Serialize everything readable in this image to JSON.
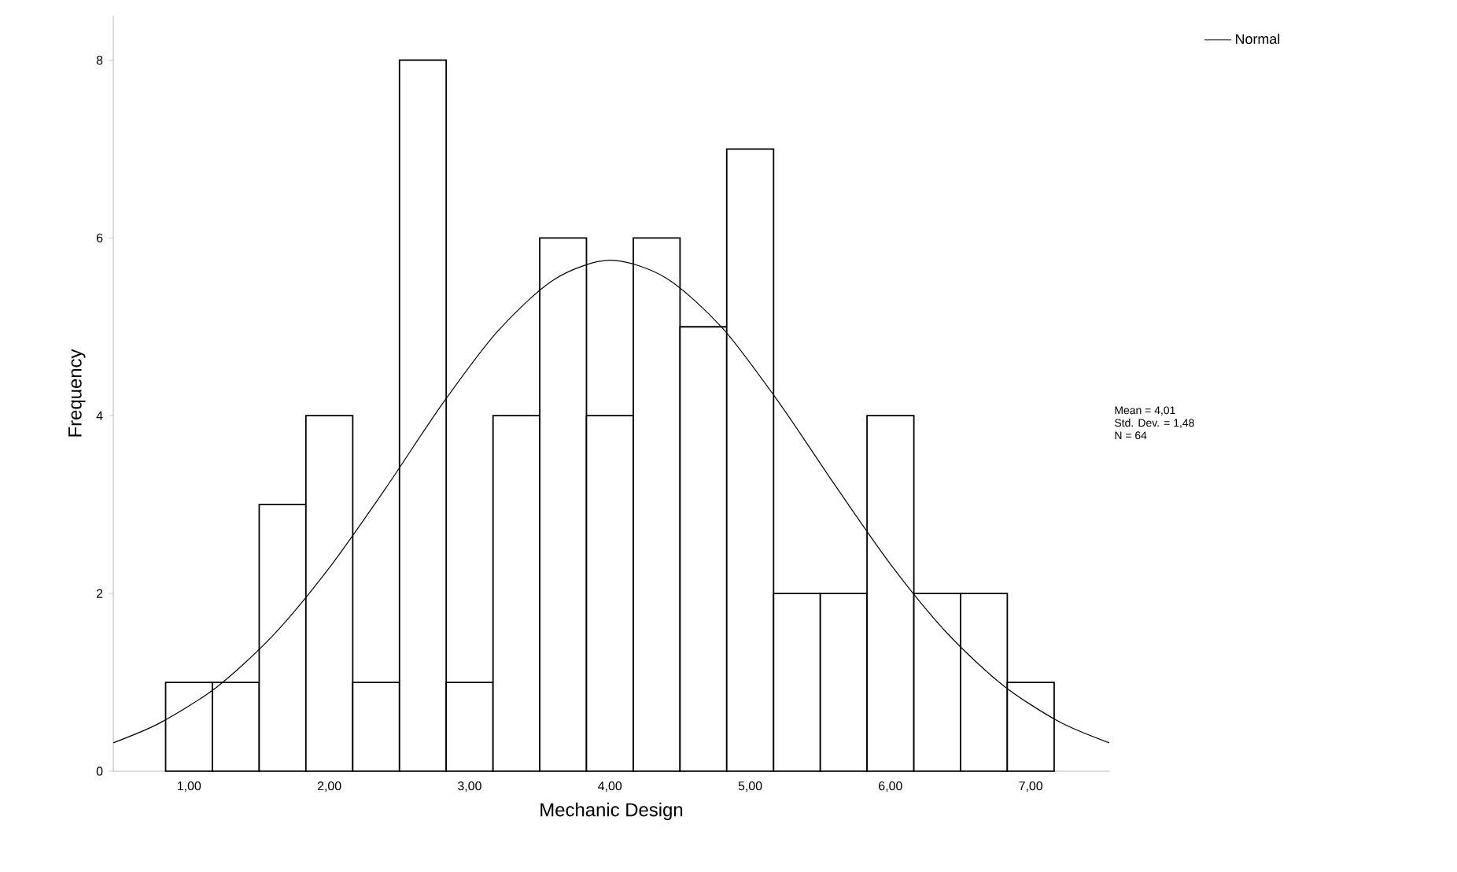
{
  "chart_data": {
    "type": "histogram",
    "xlabel": "Mechanic Design",
    "ylabel": "Frequency",
    "xlim": [
      0.46,
      7.56
    ],
    "ylim": [
      0,
      8.5
    ],
    "xticks": [
      {
        "value": 1,
        "label": "1,00"
      },
      {
        "value": 2,
        "label": "2,00"
      },
      {
        "value": 3,
        "label": "3,00"
      },
      {
        "value": 4,
        "label": "4,00"
      },
      {
        "value": 5,
        "label": "5,00"
      },
      {
        "value": 6,
        "label": "6,00"
      },
      {
        "value": 7,
        "label": "7,00"
      }
    ],
    "yticks": [
      0,
      2,
      4,
      6,
      8
    ],
    "legend": "top right",
    "grid": false,
    "annotations": [
      "Mean = 4,01",
      "Std. Dev. = 1,48",
      "N = 64"
    ],
    "series": [
      {
        "color": "#ffffff",
        "bins": [
          0.833,
          1.167,
          1.5,
          1.833,
          2.167,
          2.5,
          2.833,
          3.167,
          3.5,
          3.833,
          4.167,
          4.5,
          4.833,
          5.167,
          5.5,
          5.833,
          6.167,
          6.5,
          6.833,
          7.167
        ],
        "values": [
          1,
          1,
          3,
          4,
          1,
          8,
          1,
          4,
          6,
          4,
          6,
          5,
          7,
          2,
          2,
          4,
          2,
          2,
          1
        ]
      },
      {
        "type": "line",
        "name": "Normal",
        "color": "#000000",
        "x": [
          0.46,
          0.8,
          1.2,
          1.6,
          2.0,
          2.4,
          2.8,
          3.2,
          3.6,
          4.0,
          4.4,
          4.8,
          5.2,
          5.6,
          6.0,
          6.4,
          6.8,
          7.2,
          7.56
        ],
        "values": [
          0.32,
          0.55,
          0.95,
          1.53,
          2.29,
          3.18,
          4.12,
          4.95,
          5.53,
          5.75,
          5.55,
          4.99,
          4.16,
          3.23,
          2.33,
          1.56,
          0.97,
          0.56,
          0.32
        ]
      }
    ]
  }
}
